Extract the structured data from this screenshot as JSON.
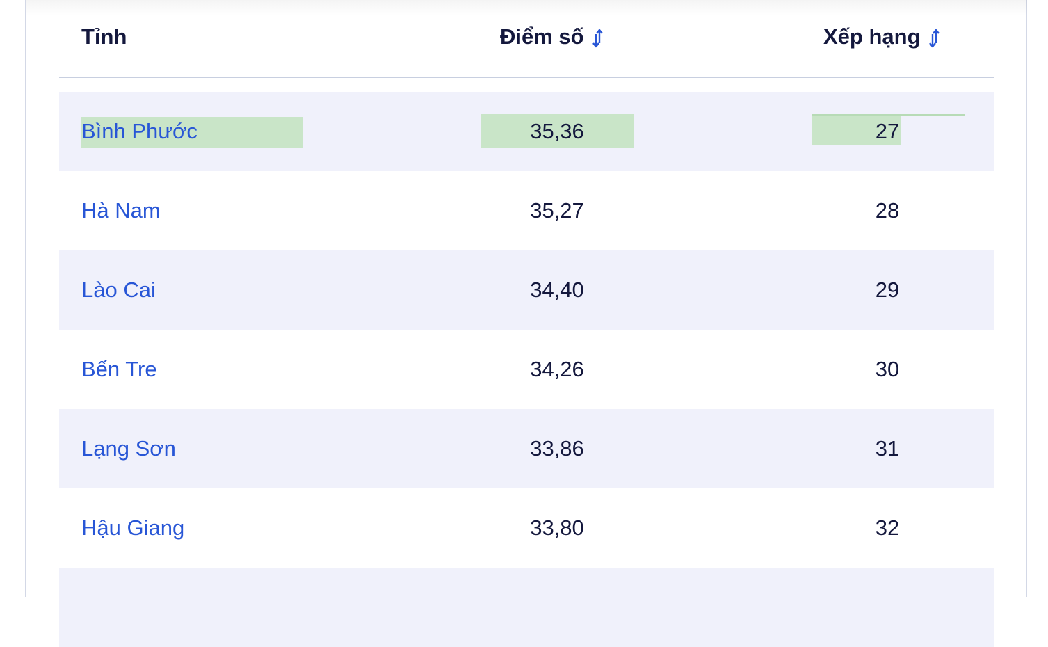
{
  "table": {
    "headers": {
      "province": "Tỉnh",
      "score": "Điểm số",
      "rank": "Xếp hạng"
    },
    "header_icons": {
      "score": "sort-arrows-icon",
      "rank": "sort-arrows-icon"
    },
    "rows": [
      {
        "province": "Bình Phước",
        "score": "35,36",
        "rank": "27",
        "highlighted": true
      },
      {
        "province": "Hà Nam",
        "score": "35,27",
        "rank": "28"
      },
      {
        "province": "Lào Cai",
        "score": "34,40",
        "rank": "29"
      },
      {
        "province": "Bến Tre",
        "score": "34,26",
        "rank": "30"
      },
      {
        "province": "Lạng Sơn",
        "score": "33,86",
        "rank": "31"
      },
      {
        "province": "Hậu Giang",
        "score": "33,80",
        "rank": "32"
      }
    ]
  },
  "colors": {
    "link": "#2856d6",
    "text": "#14183d",
    "row_alt_bg": "#f0f1fb",
    "highlight": "#c9e5c8"
  }
}
